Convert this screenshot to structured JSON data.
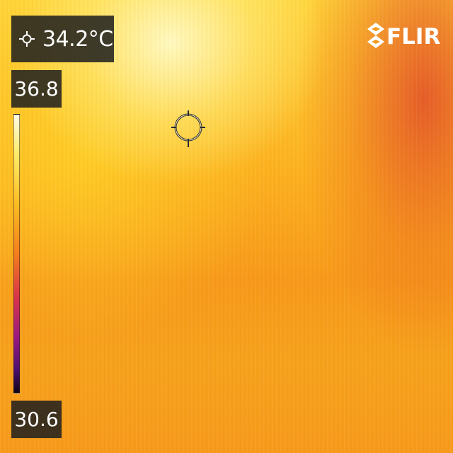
{
  "camera": {
    "brand": "FLIR",
    "spot_temperature": "34.2°C",
    "scale_max": "36.8",
    "scale_min": "30.6",
    "palette": [
      "#fffce8",
      "#ffec6a",
      "#fbbd22",
      "#f57e1d",
      "#d8334b",
      "#9a1a80",
      "#4a0f6e",
      "#0c0418"
    ]
  },
  "icons": {
    "spot": "spot-meter-icon",
    "crosshair": "crosshair-reticle-icon",
    "logo": "flir-logo-icon"
  }
}
